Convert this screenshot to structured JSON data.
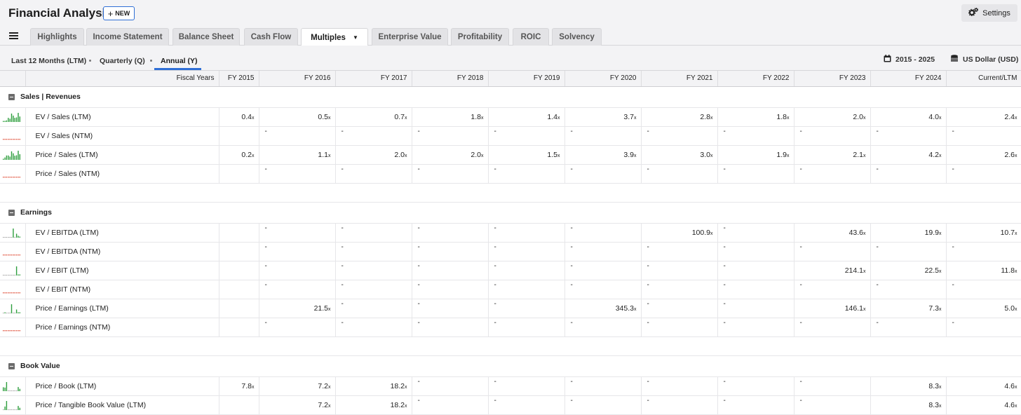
{
  "app": {
    "title": "Financial Analysis",
    "new_label": "NEW",
    "settings_label": "Settings"
  },
  "tabs": [
    {
      "label": "Highlights",
      "active": false
    },
    {
      "label": "Income Statement",
      "active": false
    },
    {
      "label": "Balance Sheet",
      "active": false
    },
    {
      "label": "Cash Flow",
      "active": false
    },
    {
      "label": "Multiples",
      "active": true
    },
    {
      "label": "Enterprise Value",
      "active": false
    },
    {
      "label": "Profitability",
      "active": false
    },
    {
      "label": "ROIC",
      "active": false
    },
    {
      "label": "Solvency",
      "active": false
    }
  ],
  "periods": [
    {
      "label": "Last 12 Months (LTM)",
      "active": false
    },
    {
      "label": "Quarterly (Q)",
      "active": false
    },
    {
      "label": "Annual (Y)",
      "active": true
    }
  ],
  "controls": {
    "range_label": "2015 - 2025",
    "currency_label": "US Dollar (USD)"
  },
  "colors": {
    "accent": "#2f6fd6",
    "spark_positive": "#2e9e3e",
    "spark_missing": "#e0523c"
  },
  "table": {
    "header_label": "Fiscal Years",
    "columns": [
      "FY 2015",
      "FY 2016",
      "FY 2017",
      "FY 2018",
      "FY 2019",
      "FY 2020",
      "FY 2021",
      "FY 2022",
      "FY 2023",
      "FY 2024",
      "Current/LTM"
    ],
    "unit_suffix": "x",
    "sections": [
      {
        "title": "Sales | Revenues",
        "rows": [
          {
            "label": "EV / Sales (LTM)",
            "values": [
              0.4,
              0.5,
              0.7,
              1.8,
              1.4,
              3.7,
              2.8,
              1.8,
              2.0,
              4.0,
              2.4
            ]
          },
          {
            "label": "EV / Sales (NTM)",
            "values": [
              null,
              "-",
              "-",
              "-",
              "-",
              "-",
              "-",
              "-",
              "-",
              "-",
              "-"
            ]
          },
          {
            "label": "Price / Sales (LTM)",
            "values": [
              0.2,
              1.1,
              2.0,
              2.0,
              1.5,
              3.9,
              3.0,
              1.9,
              2.1,
              4.2,
              2.6
            ]
          },
          {
            "label": "Price / Sales (NTM)",
            "values": [
              null,
              "-",
              "-",
              "-",
              "-",
              "-",
              "-",
              "-",
              "-",
              "-",
              "-"
            ]
          }
        ]
      },
      {
        "title": "Earnings",
        "rows": [
          {
            "label": "EV / EBITDA (LTM)",
            "values": [
              null,
              "-",
              "-",
              "-",
              "-",
              "-",
              100.9,
              "-",
              43.6,
              19.9,
              10.7
            ]
          },
          {
            "label": "EV / EBITDA (NTM)",
            "values": [
              null,
              "-",
              "-",
              "-",
              "-",
              "-",
              "-",
              "-",
              "-",
              "-",
              "-"
            ]
          },
          {
            "label": "EV / EBIT (LTM)",
            "values": [
              null,
              "-",
              "-",
              "-",
              "-",
              "-",
              "-",
              "-",
              214.1,
              22.5,
              11.8
            ]
          },
          {
            "label": "EV / EBIT (NTM)",
            "values": [
              null,
              "-",
              "-",
              "-",
              "-",
              "-",
              "-",
              "-",
              "-",
              "-",
              "-"
            ]
          },
          {
            "label": "Price / Earnings (LTM)",
            "values": [
              null,
              21.5,
              "-",
              "-",
              "-",
              345.3,
              "-",
              "-",
              146.1,
              7.3,
              5.0
            ]
          },
          {
            "label": "Price / Earnings (NTM)",
            "values": [
              null,
              "-",
              "-",
              "-",
              "-",
              "-",
              "-",
              "-",
              "-",
              "-",
              "-"
            ]
          }
        ]
      },
      {
        "title": "Book Value",
        "rows": [
          {
            "label": "Price / Book (LTM)",
            "values": [
              7.8,
              7.2,
              18.2,
              "-",
              "-",
              "-",
              "-",
              "-",
              "-",
              8.3,
              4.6
            ]
          },
          {
            "label": "Price / Tangible Book Value (LTM)",
            "values": [
              null,
              7.2,
              18.2,
              "-",
              "-",
              "-",
              "-",
              "-",
              "-",
              8.3,
              4.6
            ]
          }
        ]
      }
    ]
  }
}
